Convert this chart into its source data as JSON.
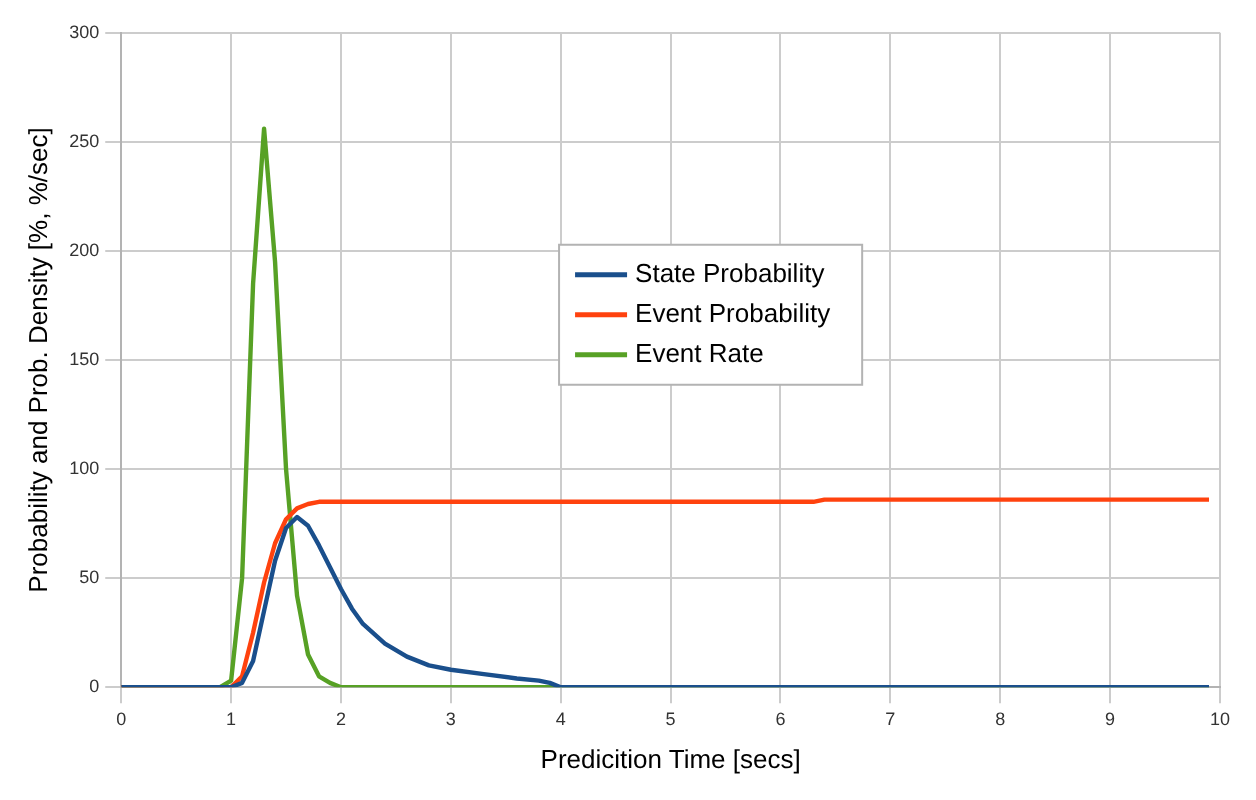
{
  "chart_data": {
    "type": "line",
    "xlabel": "Predicition Time [secs]",
    "ylabel": "Probability and Prob. Density [%, %/sec]",
    "xlim": [
      0,
      10
    ],
    "xticks": [
      0,
      1,
      2,
      3,
      4,
      5,
      6,
      7,
      8,
      9,
      10
    ],
    "ylim": [
      0,
      300
    ],
    "yticks": [
      0,
      50,
      100,
      150,
      200,
      250,
      300
    ],
    "grid": true,
    "legend": "top",
    "marker": "none",
    "line_style": "solid",
    "series": [
      {
        "name": "State Probability",
        "color": "#1a4f8c",
        "x": [
          0,
          1,
          1.1,
          1.2,
          1.3,
          1.4,
          1.5,
          1.6,
          1.7,
          1.8,
          1.9,
          2,
          2.1,
          2.2,
          2.4,
          2.6,
          2.8,
          3,
          3.3,
          3.6,
          3.8,
          3.9,
          4,
          9.9
        ],
        "values": [
          0,
          0,
          2,
          12,
          35,
          58,
          73,
          78,
          74,
          65,
          55,
          45,
          36,
          29,
          20,
          14,
          10,
          8,
          6,
          4,
          3,
          2,
          0,
          0
        ]
      },
      {
        "name": "Event Probability",
        "color": "#ff420e",
        "x": [
          0,
          1,
          1.1,
          1.2,
          1.3,
          1.4,
          1.5,
          1.6,
          1.7,
          1.8,
          2,
          5,
          5.1,
          6.3,
          6.4,
          9.9
        ],
        "values": [
          0,
          0,
          5,
          25,
          48,
          66,
          77,
          82,
          84,
          85,
          85,
          85,
          85,
          85,
          86,
          86
        ]
      },
      {
        "name": "Event Rate",
        "color": "#57a125",
        "x": [
          0,
          0.9,
          1,
          1.1,
          1.2,
          1.3,
          1.4,
          1.5,
          1.6,
          1.7,
          1.8,
          1.9,
          2,
          2.2,
          9.9
        ],
        "values": [
          0,
          0,
          3,
          50,
          185,
          256,
          195,
          100,
          42,
          15,
          5,
          2,
          0,
          0,
          0
        ]
      }
    ]
  }
}
